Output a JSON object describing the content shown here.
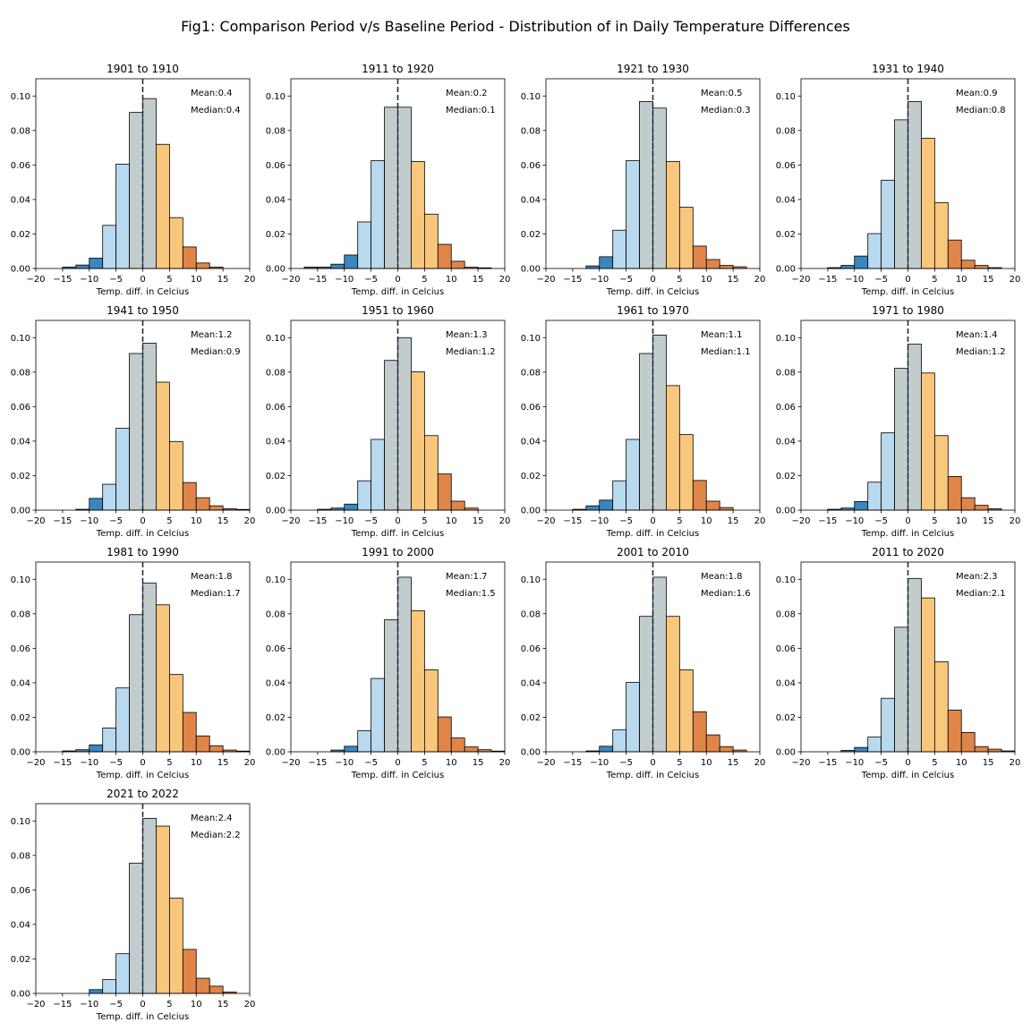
{
  "figure_title": "Fig1: Comparison Period v/s Baseline Period - Distribution of in Daily Temperature Differences",
  "chart_data": {
    "type": "bar",
    "bin_edges": [
      -17.5,
      -15,
      -12.5,
      -10,
      -7.5,
      -5,
      -2.5,
      0,
      2.5,
      5,
      7.5,
      10,
      12.5,
      15,
      17.5,
      20
    ],
    "bin_colors": [
      "#3a87bf",
      "#3a87bf",
      "#3a87bf",
      "#3a87bf",
      "#b9d9ef",
      "#b9d9ef",
      "#c3cccd",
      "#c3cccd",
      "#f9c77b",
      "#f9c77b",
      "#e08548",
      "#e08548",
      "#e08548",
      "#e08548",
      "#e08548"
    ],
    "xlabel": "Temp. diff. in Celcius",
    "xlim": [
      -20,
      20
    ],
    "ylim": [
      0,
      0.11
    ],
    "x_ticks": [
      "−20",
      "−15",
      "−10",
      "−5",
      "0",
      "5",
      "10",
      "15",
      "20"
    ],
    "y_ticks": [
      "0.00",
      "0.02",
      "0.04",
      "0.06",
      "0.08",
      "0.10"
    ],
    "reference_line_x": 0,
    "panels": [
      {
        "title": "1901 to 1910",
        "mean": "Mean:0.4",
        "median": "Median:0.4",
        "values": [
          0,
          0.0008,
          0.002,
          0.006,
          0.025,
          0.0605,
          0.0905,
          0.0985,
          0.072,
          0.0295,
          0.0125,
          0.0032,
          0.0008,
          0,
          0
        ]
      },
      {
        "title": "1911 to 1920",
        "mean": "Mean:0.2",
        "median": "Median:0.1",
        "values": [
          0.0008,
          0.0008,
          0.0025,
          0.0078,
          0.027,
          0.0625,
          0.0935,
          0.0935,
          0.062,
          0.0315,
          0.014,
          0.0042,
          0.0008,
          0.0004,
          0
        ]
      },
      {
        "title": "1921 to 1930",
        "mean": "Mean:0.5",
        "median": "Median:0.3",
        "values": [
          0,
          0,
          0.0015,
          0.0068,
          0.0222,
          0.0625,
          0.0968,
          0.093,
          0.062,
          0.0355,
          0.013,
          0.0052,
          0.0018,
          0.001,
          0
        ]
      },
      {
        "title": "1931 to 1940",
        "mean": "Mean:0.9",
        "median": "Median:0.8",
        "values": [
          0,
          0.0005,
          0.0018,
          0.0072,
          0.0202,
          0.0512,
          0.0862,
          0.0968,
          0.0755,
          0.0382,
          0.0165,
          0.0048,
          0.0018,
          0.0005,
          0
        ]
      },
      {
        "title": "1941 to 1950",
        "mean": "Mean:1.2",
        "median": "Median:0.9",
        "values": [
          0,
          0,
          0.0005,
          0.0068,
          0.015,
          0.0475,
          0.0908,
          0.0968,
          0.0742,
          0.0398,
          0.016,
          0.0072,
          0.0025,
          0.0008,
          0.0004
        ]
      },
      {
        "title": "1951 to 1960",
        "mean": "Mean:1.3",
        "median": "Median:1.2",
        "values": [
          0,
          0.0005,
          0.0012,
          0.0035,
          0.017,
          0.041,
          0.0868,
          0.1,
          0.0802,
          0.0432,
          0.021,
          0.0052,
          0.0012,
          0,
          0
        ]
      },
      {
        "title": "1961 to 1970",
        "mean": "Mean:1.1",
        "median": "Median:1.1",
        "values": [
          0,
          0.0005,
          0.0025,
          0.0058,
          0.017,
          0.041,
          0.0908,
          0.1015,
          0.0722,
          0.0438,
          0.0172,
          0.0052,
          0.0015,
          0,
          0
        ]
      },
      {
        "title": "1971 to 1980",
        "mean": "Mean:1.4",
        "median": "Median:1.2",
        "values": [
          0,
          0.0005,
          0.0012,
          0.005,
          0.0162,
          0.0448,
          0.0822,
          0.0962,
          0.0795,
          0.0432,
          0.0195,
          0.0072,
          0.0028,
          0.0008,
          0
        ]
      },
      {
        "title": "1981 to 1990",
        "mean": "Mean:1.8",
        "median": "Median:1.7",
        "values": [
          0,
          0.0005,
          0.0012,
          0.004,
          0.0138,
          0.037,
          0.0795,
          0.0978,
          0.0852,
          0.0448,
          0.0228,
          0.0092,
          0.0035,
          0.001,
          0.0004
        ]
      },
      {
        "title": "1991 to 2000",
        "mean": "Mean:1.7",
        "median": "Median:1.5",
        "values": [
          0,
          0,
          0.001,
          0.0032,
          0.0122,
          0.0425,
          0.0765,
          0.1012,
          0.0818,
          0.0475,
          0.0202,
          0.008,
          0.0028,
          0.0012,
          0.0004
        ]
      },
      {
        "title": "2001 to 2010",
        "mean": "Mean:1.8",
        "median": "Median:1.6",
        "values": [
          0,
          0,
          0.0005,
          0.0032,
          0.0128,
          0.0402,
          0.0785,
          0.1012,
          0.0785,
          0.0475,
          0.0232,
          0.0098,
          0.003,
          0.001,
          0
        ]
      },
      {
        "title": "2011 to 2020",
        "mean": "Mean:2.3",
        "median": "Median:2.1",
        "values": [
          0,
          0,
          0.0008,
          0.0025,
          0.0085,
          0.031,
          0.0722,
          0.1005,
          0.0892,
          0.0522,
          0.0242,
          0.0112,
          0.003,
          0.0015,
          0.0005
        ]
      },
      {
        "title": "2021 to 2022",
        "mean": "Mean:2.4",
        "median": "Median:2.2",
        "values": [
          0,
          0,
          0,
          0.0022,
          0.008,
          0.023,
          0.0755,
          0.1015,
          0.097,
          0.0552,
          0.0255,
          0.0088,
          0.0042,
          0.0008,
          0
        ]
      }
    ]
  }
}
